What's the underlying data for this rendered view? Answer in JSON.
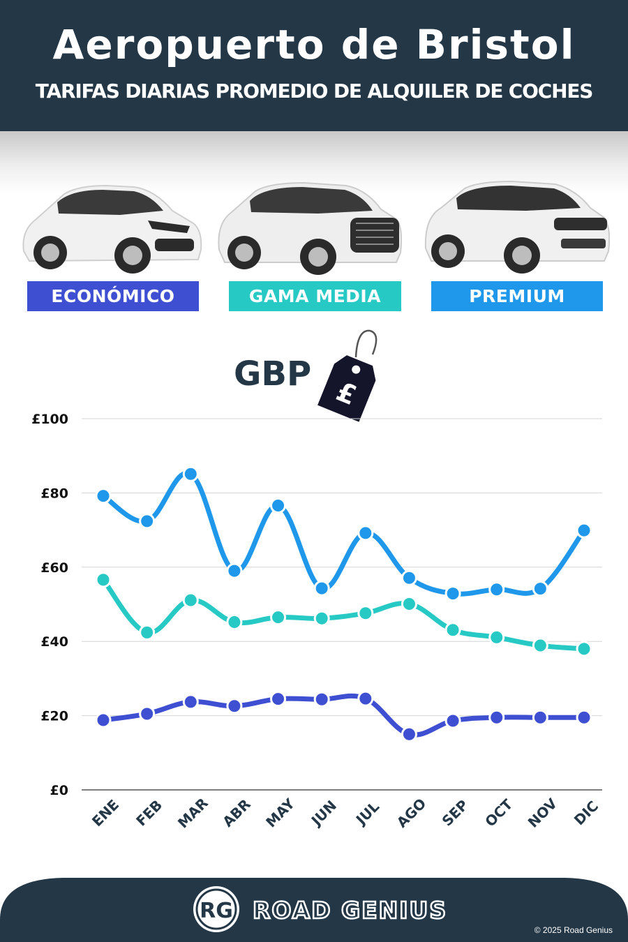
{
  "header": {
    "title": "Aeropuerto de Bristol",
    "subtitle": "TARIFAS DIARIAS PROMEDIO DE ALQUILER DE COCHES"
  },
  "categories": [
    {
      "label": "ECONÓMICO",
      "color": "#3f4fd1"
    },
    {
      "label": "GAMA MEDIA",
      "color": "#27c9c5"
    },
    {
      "label": "PREMIUM",
      "color": "#1f97ea"
    }
  ],
  "currency_label": "GBP",
  "price_tag_symbol": "£",
  "chart_data": {
    "type": "line",
    "categories": [
      "ENE",
      "FEB",
      "MAR",
      "ABR",
      "MAY",
      "JUN",
      "JUL",
      "AGO",
      "SEP",
      "OCT",
      "NOV",
      "DIC"
    ],
    "series": [
      {
        "name": "PREMIUM",
        "color": "#1f97ea",
        "values": [
          79.2,
          72.4,
          85.1,
          59.0,
          76.6,
          54.3,
          69.2,
          57.1,
          52.9,
          54.0,
          54.2,
          69.9
        ]
      },
      {
        "name": "GAMA MEDIA",
        "color": "#27c9c5",
        "values": [
          56.6,
          42.4,
          51.1,
          45.2,
          46.5,
          46.2,
          47.6,
          50.1,
          43.1,
          41.1,
          38.9,
          38.0
        ]
      },
      {
        "name": "ECONÓMICO",
        "color": "#3f4fd1",
        "values": [
          18.8,
          20.5,
          23.7,
          22.6,
          24.5,
          24.4,
          24.6,
          15.0,
          18.6,
          19.5,
          19.5,
          19.5
        ]
      }
    ],
    "y_ticks": [
      "£0",
      "£20",
      "£40",
      "£60",
      "£80",
      "£100"
    ],
    "ylim": [
      0,
      100
    ],
    "grid": true
  },
  "footer": {
    "logo_mark": "RG",
    "brand": "ROAD GENIUS",
    "copyright": "© 2025 Road Genius"
  }
}
